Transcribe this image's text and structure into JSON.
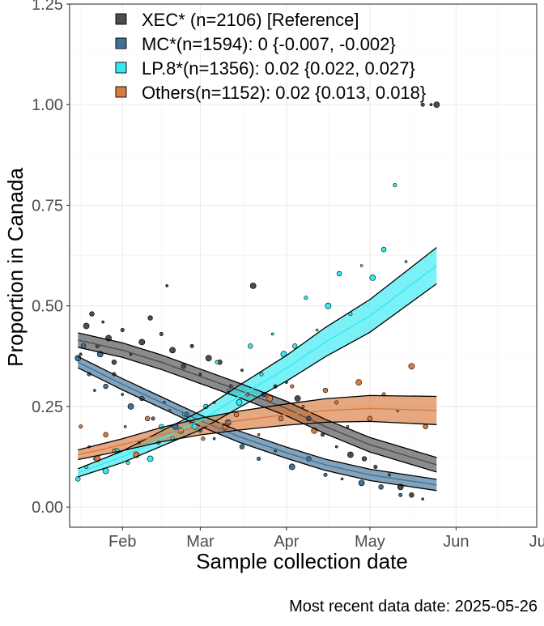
{
  "chart_data": {
    "type": "scatter",
    "title": "",
    "xlabel": "Sample collection date",
    "ylabel": "Proportion in Canada",
    "caption": "Most recent data date: 2025-05-26",
    "x_range": [
      "2025-01-13",
      "2025-06-30"
    ],
    "ylim": [
      -0.05,
      1.25
    ],
    "x_ticks": [
      {
        "label": "Feb",
        "date": "2025-02-01"
      },
      {
        "label": "Mar",
        "date": "2025-03-01"
      },
      {
        "label": "Apr",
        "date": "2025-04-01"
      },
      {
        "label": "May",
        "date": "2025-05-01"
      },
      {
        "label": "Jun",
        "date": "2025-06-01"
      },
      {
        "label": "Jul",
        "date": "2025-07-01"
      }
    ],
    "y_ticks": [
      "0.00",
      "0.25",
      "0.50",
      "0.75",
      "1.00",
      "1.25"
    ],
    "grid": true,
    "legend_position": "top-left",
    "series": [
      {
        "name": "XEC* (n=2106)  [Reference]",
        "color": "#4d4d4d",
        "fit": [
          {
            "date": "2025-01-16",
            "y": 0.415
          },
          {
            "date": "2025-02-01",
            "y": 0.39
          },
          {
            "date": "2025-02-15",
            "y": 0.36
          },
          {
            "date": "2025-03-01",
            "y": 0.325
          },
          {
            "date": "2025-03-15",
            "y": 0.29
          },
          {
            "date": "2025-04-01",
            "y": 0.245
          },
          {
            "date": "2025-04-15",
            "y": 0.2
          },
          {
            "date": "2025-05-01",
            "y": 0.155
          },
          {
            "date": "2025-05-25",
            "y": 0.105
          }
        ],
        "band_halfwidth": 0.018,
        "points": [
          [
            "2025-01-17",
            0.38
          ],
          [
            "2025-01-19",
            0.45
          ],
          [
            "2025-01-21",
            0.48
          ],
          [
            "2025-01-23",
            0.4
          ],
          [
            "2025-01-25",
            0.46
          ],
          [
            "2025-01-27",
            0.42
          ],
          [
            "2025-01-29",
            0.36
          ],
          [
            "2025-02-01",
            0.44
          ],
          [
            "2025-02-04",
            0.38
          ],
          [
            "2025-02-08",
            0.41
          ],
          [
            "2025-02-11",
            0.47
          ],
          [
            "2025-02-15",
            0.43
          ],
          [
            "2025-02-17",
            0.55
          ],
          [
            "2025-02-19",
            0.39
          ],
          [
            "2025-02-23",
            0.35
          ],
          [
            "2025-02-26",
            0.4
          ],
          [
            "2025-03-01",
            0.33
          ],
          [
            "2025-03-04",
            0.37
          ],
          [
            "2025-03-08",
            0.36
          ],
          [
            "2025-03-12",
            0.3
          ],
          [
            "2025-03-16",
            0.34
          ],
          [
            "2025-03-20",
            0.55
          ],
          [
            "2025-03-24",
            0.28
          ],
          [
            "2025-03-28",
            0.3
          ],
          [
            "2025-04-01",
            0.31
          ],
          [
            "2025-04-05",
            0.27
          ],
          [
            "2025-04-09",
            0.22
          ],
          [
            "2025-04-14",
            0.18
          ],
          [
            "2025-04-19",
            0.15
          ],
          [
            "2025-04-24",
            0.13
          ],
          [
            "2025-04-29",
            0.12
          ],
          [
            "2025-05-03",
            0.1
          ],
          [
            "2025-05-08",
            0.08
          ],
          [
            "2025-05-12",
            0.05
          ],
          [
            "2025-05-16",
            0.03
          ],
          [
            "2025-05-20",
            1.0
          ],
          [
            "2025-05-23",
            1.0
          ],
          [
            "2025-05-25",
            1.0
          ]
        ]
      },
      {
        "name": "MC*(n=1594): 0 {-0.007, -0.002}",
        "color": "#3f7296",
        "fit": [
          {
            "date": "2025-01-16",
            "y": 0.36
          },
          {
            "date": "2025-02-01",
            "y": 0.305
          },
          {
            "date": "2025-02-15",
            "y": 0.26
          },
          {
            "date": "2025-03-01",
            "y": 0.215
          },
          {
            "date": "2025-03-15",
            "y": 0.175
          },
          {
            "date": "2025-04-01",
            "y": 0.135
          },
          {
            "date": "2025-04-15",
            "y": 0.105
          },
          {
            "date": "2025-05-01",
            "y": 0.08
          },
          {
            "date": "2025-05-25",
            "y": 0.055
          }
        ],
        "band_halfwidth": 0.014,
        "points": [
          [
            "2025-01-16",
            0.37
          ],
          [
            "2025-01-18",
            0.4
          ],
          [
            "2025-01-20",
            0.33
          ],
          [
            "2025-01-22",
            0.29
          ],
          [
            "2025-01-24",
            0.38
          ],
          [
            "2025-01-26",
            0.3
          ],
          [
            "2025-01-29",
            0.33
          ],
          [
            "2025-02-01",
            0.28
          ],
          [
            "2025-02-04",
            0.25
          ],
          [
            "2025-02-08",
            0.27
          ],
          [
            "2025-02-12",
            0.22
          ],
          [
            "2025-02-16",
            0.26
          ],
          [
            "2025-02-20",
            0.2
          ],
          [
            "2025-02-24",
            0.23
          ],
          [
            "2025-03-01",
            0.19
          ],
          [
            "2025-03-06",
            0.17
          ],
          [
            "2025-03-11",
            0.21
          ],
          [
            "2025-03-16",
            0.15
          ],
          [
            "2025-03-22",
            0.12
          ],
          [
            "2025-03-28",
            0.14
          ],
          [
            "2025-04-03",
            0.1
          ],
          [
            "2025-04-09",
            0.12
          ],
          [
            "2025-04-15",
            0.08
          ],
          [
            "2025-04-21",
            0.07
          ],
          [
            "2025-04-28",
            0.06
          ],
          [
            "2025-05-05",
            0.05
          ],
          [
            "2025-05-12",
            0.03
          ],
          [
            "2025-05-20",
            0.02
          ]
        ]
      },
      {
        "name": "LP.8*(n=1356): 0.02 {0.022, 0.027}",
        "color": "#33eaf2",
        "fit": [
          {
            "date": "2025-01-16",
            "y": 0.085
          },
          {
            "date": "2025-02-01",
            "y": 0.125
          },
          {
            "date": "2025-02-15",
            "y": 0.17
          },
          {
            "date": "2025-03-01",
            "y": 0.215
          },
          {
            "date": "2025-03-15",
            "y": 0.275
          },
          {
            "date": "2025-04-01",
            "y": 0.345
          },
          {
            "date": "2025-04-15",
            "y": 0.41
          },
          {
            "date": "2025-05-01",
            "y": 0.475
          },
          {
            "date": "2025-05-25",
            "y": 0.6
          }
        ],
        "band_halfwidth_start": 0.01,
        "band_halfwidth_end": 0.045,
        "points": [
          [
            "2025-01-16",
            0.07
          ],
          [
            "2025-01-19",
            0.1
          ],
          [
            "2025-01-22",
            0.12
          ],
          [
            "2025-01-26",
            0.09
          ],
          [
            "2025-01-30",
            0.14
          ],
          [
            "2025-02-03",
            0.11
          ],
          [
            "2025-02-07",
            0.16
          ],
          [
            "2025-02-11",
            0.12
          ],
          [
            "2025-02-15",
            0.2
          ],
          [
            "2025-02-19",
            0.17
          ],
          [
            "2025-02-23",
            0.23
          ],
          [
            "2025-02-27",
            0.2
          ],
          [
            "2025-03-03",
            0.25
          ],
          [
            "2025-03-07",
            0.36
          ],
          [
            "2025-03-11",
            0.29
          ],
          [
            "2025-03-15",
            0.26
          ],
          [
            "2025-03-19",
            0.4
          ],
          [
            "2025-03-23",
            0.33
          ],
          [
            "2025-03-27",
            0.43
          ],
          [
            "2025-03-31",
            0.38
          ],
          [
            "2025-04-04",
            0.4
          ],
          [
            "2025-04-08",
            0.52
          ],
          [
            "2025-04-12",
            0.44
          ],
          [
            "2025-04-16",
            0.5
          ],
          [
            "2025-04-20",
            0.58
          ],
          [
            "2025-04-24",
            0.48
          ],
          [
            "2025-04-28",
            0.6
          ],
          [
            "2025-05-02",
            0.57
          ],
          [
            "2025-05-06",
            0.64
          ],
          [
            "2025-05-10",
            0.8
          ],
          [
            "2025-05-14",
            0.61
          ]
        ]
      },
      {
        "name": "Others(n=1152): 0.02 {0.013, 0.018}",
        "color": "#d97a3e",
        "fit": [
          {
            "date": "2025-01-16",
            "y": 0.13
          },
          {
            "date": "2025-02-01",
            "y": 0.155
          },
          {
            "date": "2025-02-15",
            "y": 0.18
          },
          {
            "date": "2025-03-01",
            "y": 0.2
          },
          {
            "date": "2025-03-15",
            "y": 0.215
          },
          {
            "date": "2025-04-01",
            "y": 0.23
          },
          {
            "date": "2025-04-15",
            "y": 0.24
          },
          {
            "date": "2025-05-01",
            "y": 0.245
          },
          {
            "date": "2025-05-25",
            "y": 0.24
          }
        ],
        "band_halfwidth_start": 0.012,
        "band_halfwidth_end": 0.035,
        "points": [
          [
            "2025-01-17",
            0.2
          ],
          [
            "2025-01-20",
            0.15
          ],
          [
            "2025-01-23",
            0.12
          ],
          [
            "2025-01-26",
            0.18
          ],
          [
            "2025-01-29",
            0.14
          ],
          [
            "2025-02-02",
            0.2
          ],
          [
            "2025-02-06",
            0.13
          ],
          [
            "2025-02-10",
            0.22
          ],
          [
            "2025-02-14",
            0.16
          ],
          [
            "2025-02-18",
            0.24
          ],
          [
            "2025-02-22",
            0.19
          ],
          [
            "2025-02-26",
            0.21
          ],
          [
            "2025-03-02",
            0.17
          ],
          [
            "2025-03-06",
            0.26
          ],
          [
            "2025-03-10",
            0.2
          ],
          [
            "2025-03-14",
            0.23
          ],
          [
            "2025-03-18",
            0.28
          ],
          [
            "2025-03-22",
            0.18
          ],
          [
            "2025-03-26",
            0.27
          ],
          [
            "2025-03-30",
            0.22
          ],
          [
            "2025-04-03",
            0.3
          ],
          [
            "2025-04-07",
            0.25
          ],
          [
            "2025-04-11",
            0.19
          ],
          [
            "2025-04-15",
            0.29
          ],
          [
            "2025-04-19",
            0.26
          ],
          [
            "2025-04-23",
            0.2
          ],
          [
            "2025-04-27",
            0.31
          ],
          [
            "2025-05-01",
            0.22
          ],
          [
            "2025-05-06",
            0.28
          ],
          [
            "2025-05-11",
            0.24
          ],
          [
            "2025-05-16",
            0.35
          ],
          [
            "2025-05-21",
            0.2
          ]
        ]
      }
    ]
  }
}
